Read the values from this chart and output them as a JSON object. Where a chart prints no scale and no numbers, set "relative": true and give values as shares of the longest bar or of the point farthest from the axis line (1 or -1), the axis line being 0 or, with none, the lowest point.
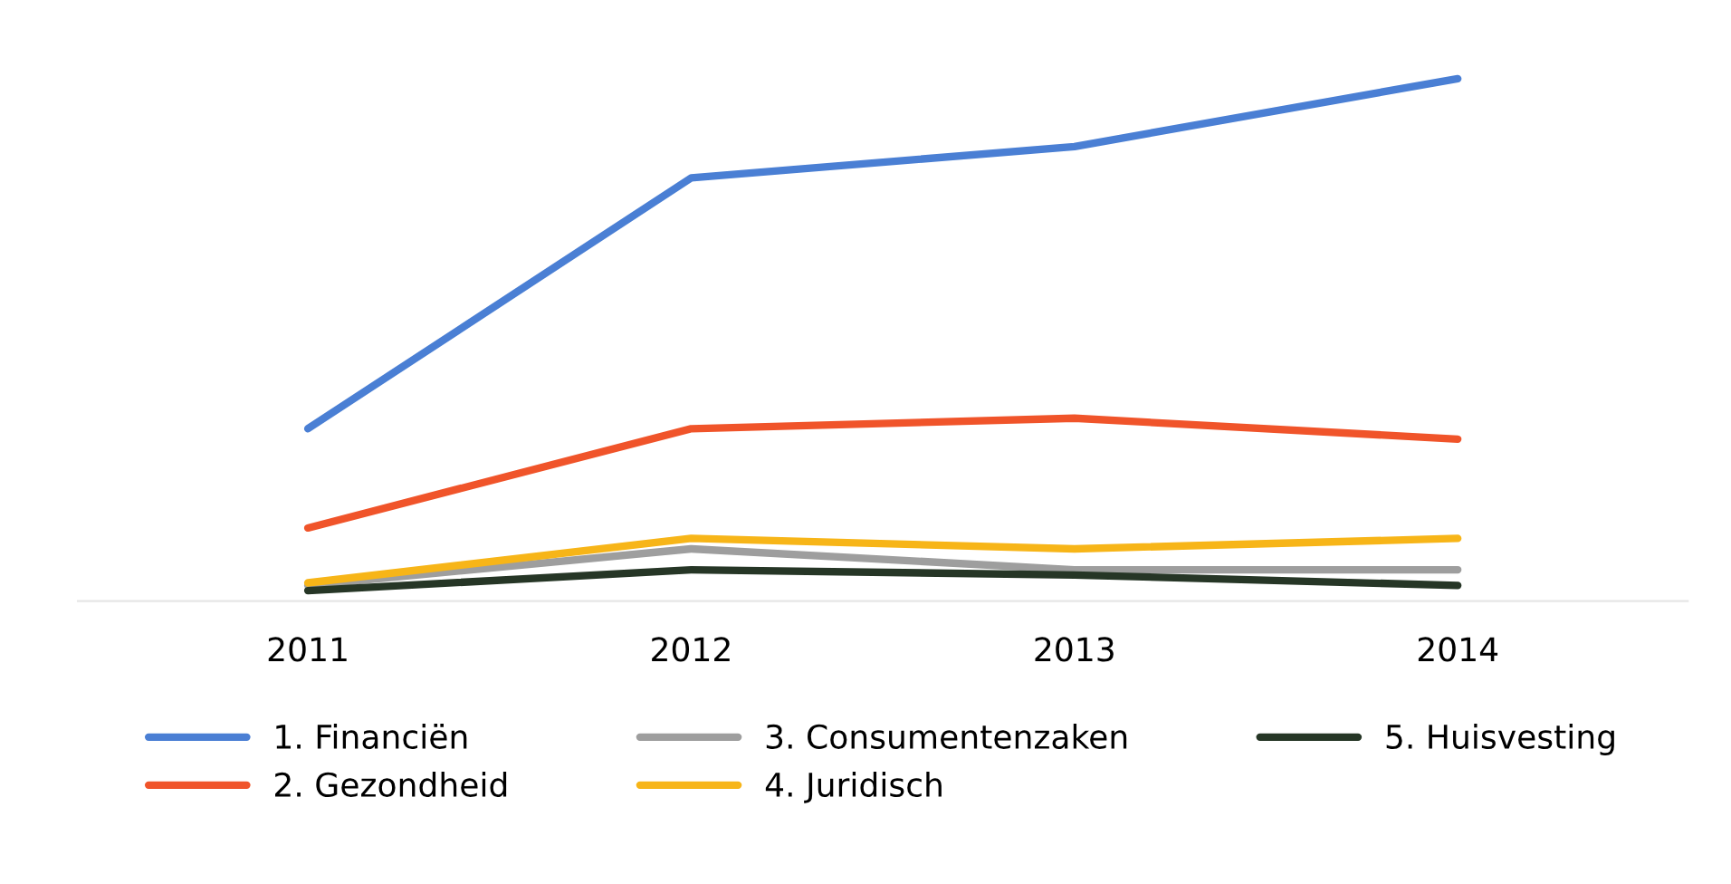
{
  "chart_data": {
    "type": "line",
    "relative": true,
    "categories": [
      "2011",
      "2012",
      "2013",
      "2014"
    ],
    "series": [
      {
        "name": "1. Financiën",
        "color": "#4a7fd4",
        "values": [
          0.33,
          0.81,
          0.87,
          1.0
        ]
      },
      {
        "name": "2. Gezondheid",
        "color": "#f0542a",
        "values": [
          0.14,
          0.33,
          0.35,
          0.31
        ]
      },
      {
        "name": "3. Consumentenzaken",
        "color": "#9e9e9e",
        "values": [
          0.03,
          0.1,
          0.06,
          0.06
        ]
      },
      {
        "name": "4. Juridisch",
        "color": "#f7b518",
        "values": [
          0.035,
          0.12,
          0.1,
          0.12
        ]
      },
      {
        "name": "5. Huisvesting",
        "color": "#263626",
        "values": [
          0.02,
          0.06,
          0.05,
          0.03
        ]
      }
    ],
    "legend": "bottom",
    "marker": "none",
    "line_style": "solid"
  }
}
